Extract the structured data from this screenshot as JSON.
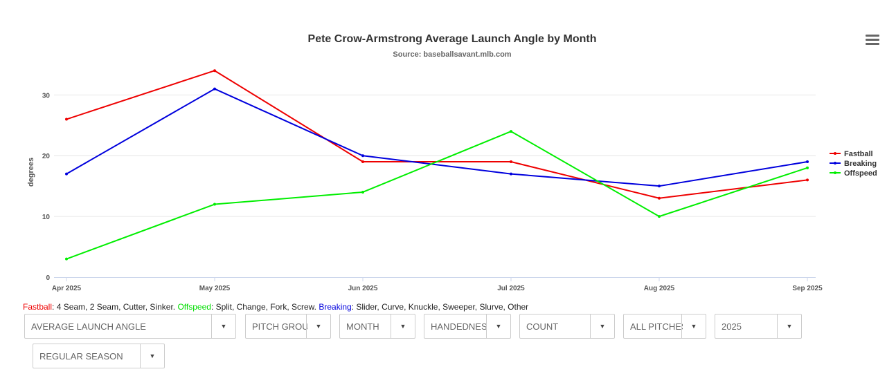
{
  "chart_data": {
    "type": "line",
    "title": "Pete Crow-Armstrong Average Launch Angle by Month",
    "subtitle": "Source: baseballsavant.mlb.com",
    "xlabel": "",
    "ylabel": "degrees",
    "categories": [
      "Apr 2025",
      "May 2025",
      "Jun 2025",
      "Jul 2025",
      "Aug 2025",
      "Sep 2025"
    ],
    "ylim": [
      0,
      33
    ],
    "yticks": [
      0,
      10,
      20,
      30
    ],
    "grid": true,
    "legend_position": "right",
    "series": [
      {
        "name": "Fastball",
        "color": "#ee0000",
        "values": [
          26,
          34,
          19,
          19,
          13,
          16
        ]
      },
      {
        "name": "Breaking",
        "color": "#0000dd",
        "values": [
          17,
          31,
          20,
          17,
          15,
          19
        ]
      },
      {
        "name": "Offspeed",
        "color": "#00ee00",
        "values": [
          3,
          12,
          14,
          24,
          10,
          18
        ]
      }
    ]
  },
  "pitch_groups": {
    "fastball_label": "Fastball",
    "fastball_list": ": 4 Seam, 2 Seam, Cutter, Sinker. ",
    "offspeed_label": "Offspeed",
    "offspeed_list": ": Split, Change, Fork, Screw. ",
    "breaking_label": "Breaking",
    "breaking_list": ": Slider, Curve, Knuckle, Sweeper, Slurve, Other",
    "colors": {
      "fastball": "#ee0000",
      "offspeed": "#00ee00",
      "breaking": "#0000dd"
    }
  },
  "filters": {
    "metric": "AVERAGE LAUNCH ANGLE",
    "group": "PITCH GROUP",
    "period": "MONTH",
    "handedness": "HANDEDNESS",
    "count": "COUNT",
    "pitches": "ALL PITCHES",
    "year": "2025",
    "season": "REGULAR SEASON",
    "arrow": "▼"
  },
  "icons": {
    "menu": "hamburger-menu-icon"
  }
}
